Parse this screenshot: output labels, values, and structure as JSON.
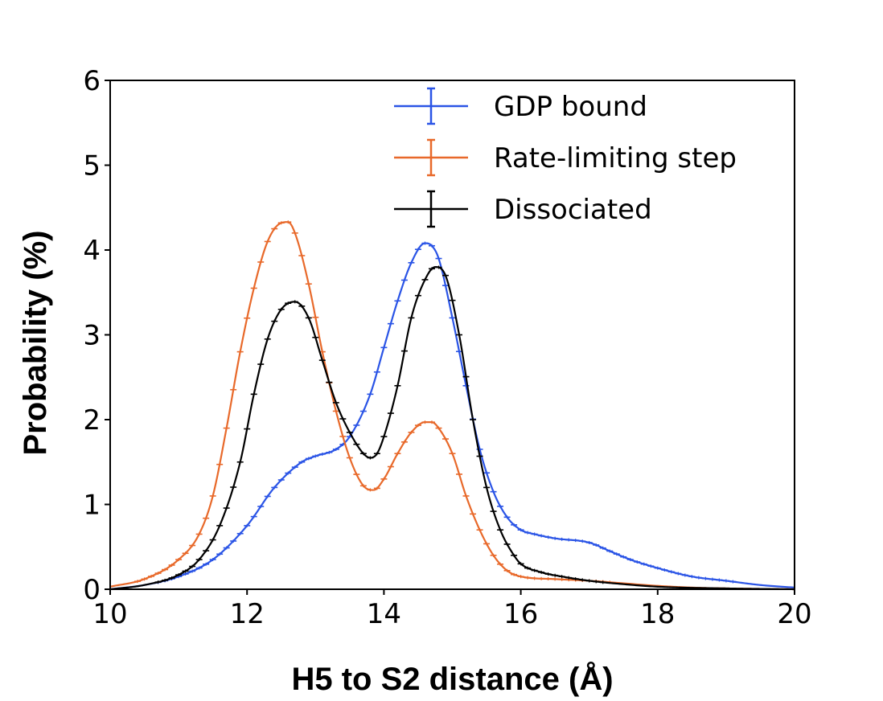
{
  "chart_data": {
    "type": "line",
    "title": "",
    "xlabel": "H5 to S2 distance (Å)",
    "ylabel": "Probability (%)",
    "xlim": [
      10,
      20
    ],
    "ylim": [
      0,
      6
    ],
    "xticks": [
      "10",
      "12",
      "14",
      "16",
      "18",
      "20"
    ],
    "yticks": [
      "0",
      "1",
      "2",
      "3",
      "4",
      "5",
      "6"
    ],
    "grid": false,
    "legend_position": "top-right",
    "error_bars": true,
    "series": [
      {
        "name": "GDP bound",
        "color": "#2a54e6",
        "x": [
          10.0,
          10.5,
          11.0,
          11.5,
          12.0,
          12.4,
          12.8,
          13.0,
          13.3,
          13.5,
          13.8,
          14.0,
          14.2,
          14.4,
          14.6,
          14.7,
          14.8,
          15.0,
          15.2,
          15.4,
          15.6,
          15.8,
          16.0,
          16.2,
          16.5,
          17.0,
          17.3,
          17.6,
          18.0,
          18.5,
          19.0,
          19.5,
          20.0
        ],
        "y": [
          0.0,
          0.05,
          0.15,
          0.35,
          0.75,
          1.2,
          1.5,
          1.57,
          1.65,
          1.8,
          2.3,
          2.85,
          3.4,
          3.85,
          4.08,
          4.05,
          3.9,
          3.2,
          2.4,
          1.65,
          1.15,
          0.85,
          0.7,
          0.65,
          0.6,
          0.55,
          0.45,
          0.35,
          0.25,
          0.15,
          0.1,
          0.05,
          0.02
        ]
      },
      {
        "name": "Rate-limiting step",
        "color": "#e8692a",
        "x": [
          10.0,
          10.5,
          11.0,
          11.3,
          11.5,
          11.7,
          11.9,
          12.1,
          12.3,
          12.5,
          12.6,
          12.7,
          12.9,
          13.1,
          13.3,
          13.5,
          13.7,
          13.85,
          14.0,
          14.2,
          14.4,
          14.6,
          14.7,
          14.8,
          15.0,
          15.2,
          15.4,
          15.6,
          15.8,
          16.0,
          16.5,
          17.0,
          17.5,
          18.0,
          18.5,
          19.0,
          20.0
        ],
        "y": [
          0.03,
          0.12,
          0.35,
          0.65,
          1.1,
          1.9,
          2.8,
          3.55,
          4.1,
          4.32,
          4.33,
          4.2,
          3.6,
          2.8,
          2.1,
          1.55,
          1.22,
          1.17,
          1.3,
          1.6,
          1.85,
          1.97,
          1.97,
          1.9,
          1.6,
          1.1,
          0.7,
          0.4,
          0.22,
          0.15,
          0.12,
          0.1,
          0.07,
          0.04,
          0.02,
          0.01,
          0.0
        ]
      },
      {
        "name": "Dissociated",
        "color": "#000000",
        "x": [
          10.0,
          10.5,
          11.0,
          11.3,
          11.6,
          11.9,
          12.1,
          12.3,
          12.5,
          12.7,
          12.9,
          13.1,
          13.3,
          13.5,
          13.7,
          13.8,
          13.9,
          14.0,
          14.2,
          14.4,
          14.6,
          14.75,
          14.9,
          15.1,
          15.3,
          15.5,
          15.7,
          15.9,
          16.0,
          16.3,
          16.6,
          17.0,
          17.5,
          18.0,
          19.0,
          20.0
        ],
        "y": [
          0.0,
          0.05,
          0.17,
          0.35,
          0.75,
          1.5,
          2.3,
          2.95,
          3.3,
          3.39,
          3.2,
          2.7,
          2.2,
          1.85,
          1.6,
          1.55,
          1.6,
          1.8,
          2.4,
          3.2,
          3.65,
          3.8,
          3.7,
          3.0,
          2.0,
          1.2,
          0.7,
          0.4,
          0.3,
          0.2,
          0.15,
          0.1,
          0.06,
          0.03,
          0.01,
          0.0
        ]
      }
    ]
  }
}
